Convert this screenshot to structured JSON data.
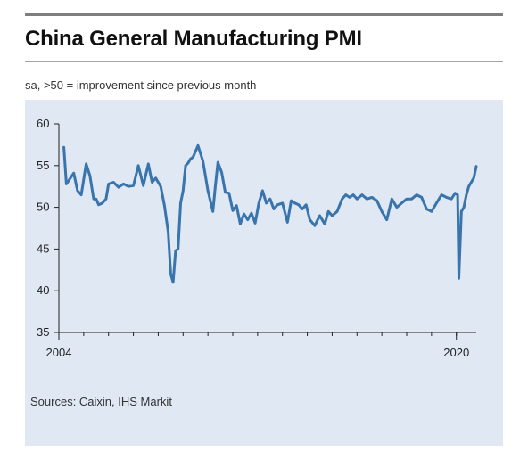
{
  "header": {
    "title": "China General Manufacturing PMI",
    "subtitle": "sa, >50 = improvement since previous month"
  },
  "footer": {
    "source": "Sources: Caixin, IHS Markit"
  },
  "chart_data": {
    "type": "line",
    "title": "China General Manufacturing PMI",
    "subtitle": "sa, >50 = improvement since previous month",
    "xlabel": "",
    "ylabel": "",
    "x_ticks": [
      "2004",
      "2020"
    ],
    "y_ticks": [
      35,
      40,
      45,
      50,
      55,
      60
    ],
    "xlim": [
      2004.0,
      2020.8
    ],
    "ylim": [
      35,
      60
    ],
    "grid": false,
    "line_color": "#3a74ad",
    "series": [
      {
        "x": [
          2004.2,
          2004.3,
          2004.4,
          2004.6,
          2004.75,
          2004.9,
          2005.1,
          2005.25,
          2005.4,
          2005.5,
          2005.6,
          2005.75,
          2005.9,
          2006.0,
          2006.2,
          2006.4,
          2006.6,
          2006.8,
          2007.0,
          2007.2,
          2007.4,
          2007.6,
          2007.75,
          2007.9,
          2008.1,
          2008.25,
          2008.4,
          2008.5,
          2008.6,
          2008.7,
          2008.8,
          2008.9,
          2009.0,
          2009.1,
          2009.2,
          2009.3,
          2009.4,
          2009.6,
          2009.8,
          2010.0,
          2010.2,
          2010.3,
          2010.4,
          2010.55,
          2010.7,
          2010.85,
          2011.0,
          2011.15,
          2011.3,
          2011.45,
          2011.6,
          2011.75,
          2011.9,
          2012.05,
          2012.2,
          2012.35,
          2012.5,
          2012.65,
          2012.8,
          2013.0,
          2013.2,
          2013.35,
          2013.5,
          2013.65,
          2013.8,
          2013.95,
          2014.1,
          2014.3,
          2014.5,
          2014.7,
          2014.85,
          2015.0,
          2015.2,
          2015.4,
          2015.55,
          2015.7,
          2015.85,
          2016.0,
          2016.2,
          2016.4,
          2016.6,
          2016.8,
          2017.0,
          2017.2,
          2017.4,
          2017.6,
          2017.8,
          2018.0,
          2018.2,
          2018.4,
          2018.6,
          2018.8,
          2019.0,
          2019.2,
          2019.4,
          2019.6,
          2019.8,
          2019.95,
          2020.05,
          2020.1,
          2020.2,
          2020.3,
          2020.4,
          2020.5,
          2020.6,
          2020.7,
          2020.8
        ],
        "values": [
          57.2,
          52.8,
          53.2,
          54.1,
          52.0,
          51.5,
          55.2,
          53.8,
          51.0,
          51.0,
          50.3,
          50.5,
          51.0,
          52.8,
          53.0,
          52.4,
          52.8,
          52.5,
          52.6,
          55.0,
          52.6,
          55.2,
          53.0,
          53.5,
          52.5,
          50.2,
          47.0,
          42.0,
          41.0,
          44.8,
          45.0,
          50.5,
          52.0,
          55.0,
          55.3,
          55.8,
          56.0,
          57.4,
          55.5,
          52.0,
          49.5,
          52.6,
          55.4,
          54.2,
          51.8,
          51.7,
          49.6,
          50.2,
          48.0,
          49.2,
          48.5,
          49.3,
          48.1,
          50.5,
          52.0,
          50.5,
          51.0,
          49.8,
          50.3,
          50.5,
          48.2,
          50.8,
          50.5,
          50.3,
          49.8,
          50.3,
          48.5,
          47.8,
          49.0,
          48.0,
          49.5,
          49.0,
          49.5,
          51.0,
          51.5,
          51.2,
          51.5,
          51.0,
          51.5,
          51.0,
          51.2,
          50.8,
          49.5,
          48.5,
          51.0,
          50.0,
          50.5,
          51.0,
          51.0,
          51.5,
          51.2,
          49.8,
          49.5,
          50.5,
          51.5,
          51.2,
          51.0,
          51.7,
          51.5,
          41.5,
          49.5,
          50.0,
          51.5,
          52.5,
          53.0,
          53.5,
          54.9
        ]
      }
    ]
  }
}
